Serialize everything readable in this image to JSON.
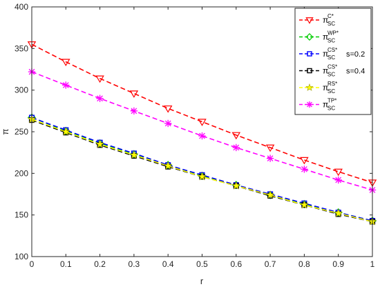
{
  "chart_data": {
    "type": "line",
    "xlabel": "r",
    "ylabel": "π",
    "xlim": [
      0,
      1
    ],
    "ylim": [
      100,
      400
    ],
    "xticks": [
      "0",
      "0.1",
      "0.2",
      "0.3",
      "0.4",
      "0.5",
      "0.6",
      "0.7",
      "0.8",
      "0.9",
      "1"
    ],
    "yticks": [
      "100",
      "150",
      "200",
      "250",
      "300",
      "350",
      "400"
    ],
    "grid": false,
    "legend_position": "top-right",
    "x": [
      0,
      0.1,
      0.2,
      0.3,
      0.4,
      0.5,
      0.6,
      0.7,
      0.8,
      0.9,
      1
    ],
    "series": [
      {
        "id": "c",
        "legend": {
          "base": "π",
          "sup": "C*",
          "sub": "SC",
          "suffix": ""
        },
        "color": "#ff0000",
        "marker": "triangle-down",
        "values": [
          355,
          334,
          314,
          296,
          278,
          262,
          246,
          231,
          216,
          202,
          189
        ]
      },
      {
        "id": "tp",
        "legend": {
          "base": "π",
          "sup": "TP*",
          "sub": "SC",
          "suffix": ""
        },
        "color": "#ff00ff",
        "marker": "asterisk",
        "values": [
          322,
          306,
          290,
          275,
          260,
          245,
          231,
          218,
          205,
          192,
          180
        ]
      },
      {
        "id": "wp",
        "legend": {
          "base": "π",
          "sup": "WP*",
          "sub": "SC",
          "suffix": ""
        },
        "color": "#00cc00",
        "marker": "diamond",
        "values": [
          267,
          251,
          236,
          223,
          210,
          197,
          186,
          174,
          163,
          153,
          143
        ]
      },
      {
        "id": "cs02",
        "legend": {
          "base": "π",
          "sup": "CS*",
          "sub": "SC",
          "suffix": "s=0.2"
        },
        "color": "#0000ff",
        "marker": "square",
        "values": [
          267,
          252,
          237,
          224,
          210,
          198,
          186,
          175,
          164,
          153,
          143
        ]
      },
      {
        "id": "cs04",
        "legend": {
          "base": "π",
          "sup": "CS*",
          "sub": "SC",
          "suffix": "s=0.4"
        },
        "color": "#000000",
        "marker": "square",
        "values": [
          264,
          249,
          234,
          221,
          208,
          196,
          185,
          173,
          162,
          151,
          142
        ]
      },
      {
        "id": "rs",
        "legend": {
          "base": "π",
          "sup": "RS*",
          "sub": "SC",
          "suffix": ""
        },
        "color": "#ffff00",
        "marker": "star",
        "values": [
          265,
          250,
          235,
          222,
          209,
          196,
          185,
          174,
          162,
          152,
          142
        ]
      }
    ],
    "legend_order": [
      "c",
      "wp",
      "cs02",
      "cs04",
      "rs",
      "tp"
    ]
  }
}
